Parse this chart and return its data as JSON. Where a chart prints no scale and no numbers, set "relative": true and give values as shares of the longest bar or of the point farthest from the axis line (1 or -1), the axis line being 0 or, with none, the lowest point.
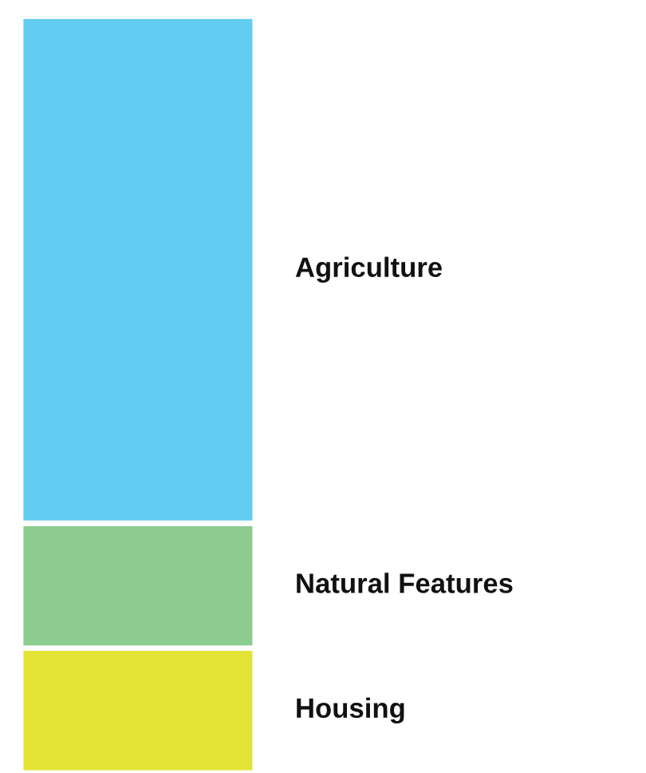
{
  "chart_data": {
    "type": "bar",
    "relative": true,
    "stacked": true,
    "categories": [
      null
    ],
    "series": [
      {
        "name": "Housing",
        "color": "#e3e336",
        "values": [
          0.165
        ]
      },
      {
        "name": "Natural Features",
        "color": "#8ccc8f",
        "values": [
          0.165
        ]
      },
      {
        "name": "Agriculture",
        "color": "#62cdf0",
        "values": [
          0.67
        ]
      }
    ]
  }
}
